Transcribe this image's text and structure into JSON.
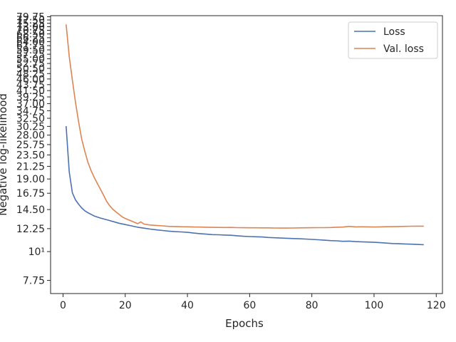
{
  "chart_data": {
    "type": "line",
    "xlabel": "Epochs",
    "ylabel": "Negative log-likelihood",
    "y_scale": "log",
    "xlim": [
      -4,
      122
    ],
    "ylim": [
      6.9,
      80.5
    ],
    "grid": false,
    "legend_position": "top-right",
    "x_ticks": [
      0,
      20,
      40,
      60,
      80,
      100,
      120
    ],
    "y_ticks": [
      7.75,
      10,
      12.25,
      14.5,
      16.75,
      19.0,
      21.25,
      23.5,
      25.75,
      28.0,
      30.25,
      32.5,
      34.75,
      37.0,
      39.25,
      41.5,
      43.75,
      46.0,
      48.25,
      50.5,
      52.75,
      55.0,
      57.25,
      59.5,
      61.75,
      64.0,
      66.25,
      68.5,
      70.75,
      73.0,
      75.25,
      77.5,
      79.75
    ],
    "y_tick_labels": [
      "7.75",
      "10¹",
      "12.25",
      "14.50",
      "16.75",
      "19.00",
      "21.25",
      "23.50",
      "25.75",
      "28.00",
      "30.25",
      "32.50",
      "34.75",
      "37.00",
      "39.25",
      "41.50",
      "43.75",
      "46.00",
      "48.25",
      "50.50",
      "52.75",
      "55.00",
      "57.25",
      "59.50",
      "61.75",
      "64.00",
      "66.25",
      "68.50",
      "70.75",
      "73.00",
      "75.25",
      "77.50",
      "79.75"
    ],
    "series": [
      {
        "name": "Loss",
        "color": "#4c72b0",
        "x": [
          1,
          2,
          3,
          4,
          5,
          6,
          7,
          8,
          9,
          10,
          12,
          14,
          16,
          18,
          20,
          22,
          24,
          26,
          28,
          30,
          32,
          34,
          36,
          38,
          40,
          42,
          44,
          46,
          48,
          50,
          52,
          54,
          56,
          58,
          60,
          62,
          64,
          66,
          68,
          70,
          72,
          74,
          76,
          78,
          80,
          82,
          84,
          86,
          88,
          90,
          92,
          94,
          96,
          98,
          100,
          102,
          104,
          106,
          108,
          110,
          112,
          114,
          116
        ],
        "y": [
          30.3,
          20.2,
          16.8,
          15.8,
          15.2,
          14.7,
          14.35,
          14.1,
          13.9,
          13.7,
          13.45,
          13.25,
          13.05,
          12.85,
          12.7,
          12.55,
          12.4,
          12.3,
          12.2,
          12.12,
          12.05,
          11.98,
          11.93,
          11.9,
          11.85,
          11.78,
          11.72,
          11.67,
          11.62,
          11.6,
          11.57,
          11.55,
          11.5,
          11.45,
          11.42,
          11.4,
          11.38,
          11.33,
          11.3,
          11.27,
          11.25,
          11.22,
          11.2,
          11.17,
          11.14,
          11.1,
          11.06,
          11.02,
          11.0,
          10.95,
          10.97,
          10.92,
          10.9,
          10.88,
          10.85,
          10.82,
          10.78,
          10.74,
          10.72,
          10.7,
          10.68,
          10.65,
          10.62
        ]
      },
      {
        "name": "Val. loss",
        "color": "#dd8452",
        "x": [
          1,
          2,
          3,
          4,
          5,
          6,
          7,
          8,
          9,
          10,
          11,
          12,
          13,
          14,
          15,
          16,
          17,
          18,
          19,
          20,
          22,
          24,
          25,
          26,
          28,
          30,
          32,
          34,
          36,
          38,
          40,
          42,
          44,
          46,
          48,
          50,
          52,
          54,
          56,
          58,
          60,
          62,
          64,
          66,
          68,
          70,
          72,
          74,
          76,
          78,
          80,
          82,
          84,
          86,
          88,
          90,
          92,
          94,
          96,
          98,
          100,
          102,
          104,
          106,
          108,
          110,
          112,
          114,
          116
        ],
        "y": [
          74.5,
          56.0,
          45.5,
          37.5,
          31.5,
          27.0,
          24.3,
          22.0,
          20.5,
          19.3,
          18.3,
          17.4,
          16.5,
          15.6,
          15.0,
          14.55,
          14.2,
          13.9,
          13.6,
          13.4,
          13.1,
          12.8,
          13.0,
          12.75,
          12.65,
          12.6,
          12.55,
          12.5,
          12.48,
          12.46,
          12.45,
          12.43,
          12.42,
          12.4,
          12.39,
          12.38,
          12.37,
          12.38,
          12.36,
          12.35,
          12.34,
          12.34,
          12.33,
          12.33,
          12.32,
          12.31,
          12.31,
          12.32,
          12.33,
          12.34,
          12.35,
          12.36,
          12.36,
          12.37,
          12.4,
          12.42,
          12.5,
          12.44,
          12.45,
          12.44,
          12.43,
          12.44,
          12.46,
          12.47,
          12.48,
          12.5,
          12.51,
          12.52,
          12.52
        ]
      }
    ]
  }
}
